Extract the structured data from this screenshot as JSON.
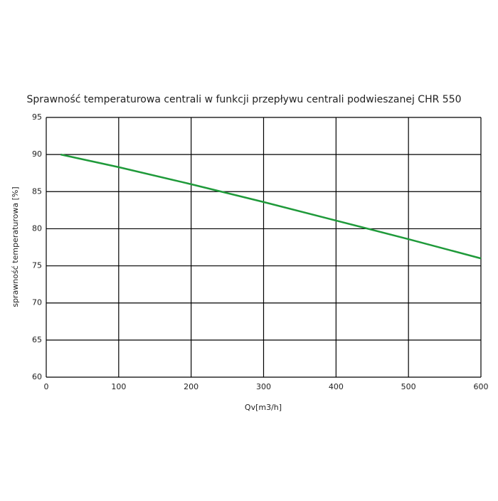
{
  "chart_data": {
    "type": "line",
    "title": "Sprawność temperaturowa centrali w funkcji przepływu centrali podwieszanej CHR 550",
    "x_label": "Qv[m3/h]",
    "y_label": "sprawność temperaturowa [%]",
    "x": [
      20,
      100,
      200,
      300,
      400,
      500,
      600
    ],
    "series": [
      {
        "color": "#1f9a3a",
        "values": [
          90,
          88.3,
          86,
          83.6,
          81.1,
          78.6,
          76
        ]
      }
    ],
    "xlim": [
      0,
      600
    ],
    "xticks": [
      0,
      100,
      200,
      300,
      400,
      500,
      600
    ],
    "ylim": [
      60,
      95
    ],
    "yticks": [
      60,
      65,
      70,
      75,
      80,
      85,
      90,
      95
    ],
    "grid": true
  }
}
